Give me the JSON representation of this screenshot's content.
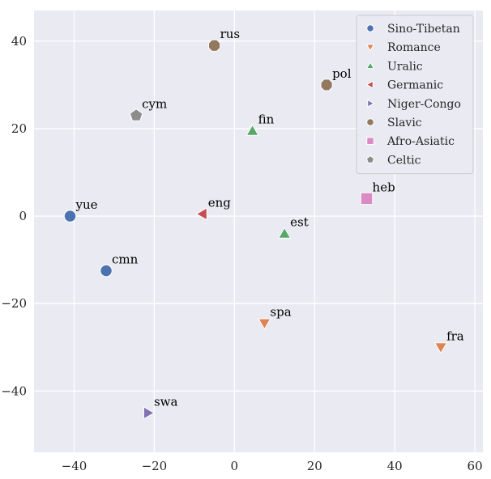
{
  "chart_data": {
    "type": "scatter",
    "title": "",
    "xlabel": "",
    "ylabel": "",
    "xlim": [
      -50,
      62
    ],
    "ylim": [
      -54,
      47
    ],
    "xticks": [
      -40,
      -20,
      0,
      20,
      40,
      60
    ],
    "yticks": [
      -40,
      -20,
      0,
      20,
      40
    ],
    "grid": true,
    "legend_position": "top-right",
    "series": [
      {
        "name": "Sino-Tibetan",
        "marker": "circle",
        "color": "#4c72b0",
        "points": [
          {
            "label": "yue",
            "x": -41,
            "y": 0
          },
          {
            "label": "cmn",
            "x": -32,
            "y": -12.5
          }
        ]
      },
      {
        "name": "Romance",
        "marker": "triangle-down",
        "color": "#dd8452",
        "points": [
          {
            "label": "spa",
            "x": 7.5,
            "y": -24.5
          },
          {
            "label": "fra",
            "x": 51.5,
            "y": -30
          }
        ]
      },
      {
        "name": "Uralic",
        "marker": "triangle-up",
        "color": "#55a868",
        "points": [
          {
            "label": "fin",
            "x": 4.5,
            "y": 19.5
          },
          {
            "label": "est",
            "x": 12.5,
            "y": -4
          }
        ]
      },
      {
        "name": "Germanic",
        "marker": "triangle-left",
        "color": "#c44e52",
        "points": [
          {
            "label": "eng",
            "x": -8,
            "y": 0.5
          }
        ]
      },
      {
        "name": "Niger-Congo",
        "marker": "triangle-right",
        "color": "#8172b3",
        "points": [
          {
            "label": "swa",
            "x": -21.5,
            "y": -45
          }
        ]
      },
      {
        "name": "Slavic",
        "marker": "octagon",
        "color": "#937860",
        "points": [
          {
            "label": "rus",
            "x": -5,
            "y": 39
          },
          {
            "label": "pol",
            "x": 23,
            "y": 30
          }
        ]
      },
      {
        "name": "Afro-Asiatic",
        "marker": "square",
        "color": "#da8bc3",
        "points": [
          {
            "label": "heb",
            "x": 33,
            "y": 4
          }
        ]
      },
      {
        "name": "Celtic",
        "marker": "pentagon",
        "color": "#8c8c8c",
        "points": [
          {
            "label": "cym",
            "x": -24.5,
            "y": 23
          }
        ]
      }
    ]
  },
  "style": {
    "plot_background": "#eaeaf2",
    "grid_color": "#ffffff",
    "legend_background": "#eaeaf2",
    "legend_border": "#cccccc"
  }
}
